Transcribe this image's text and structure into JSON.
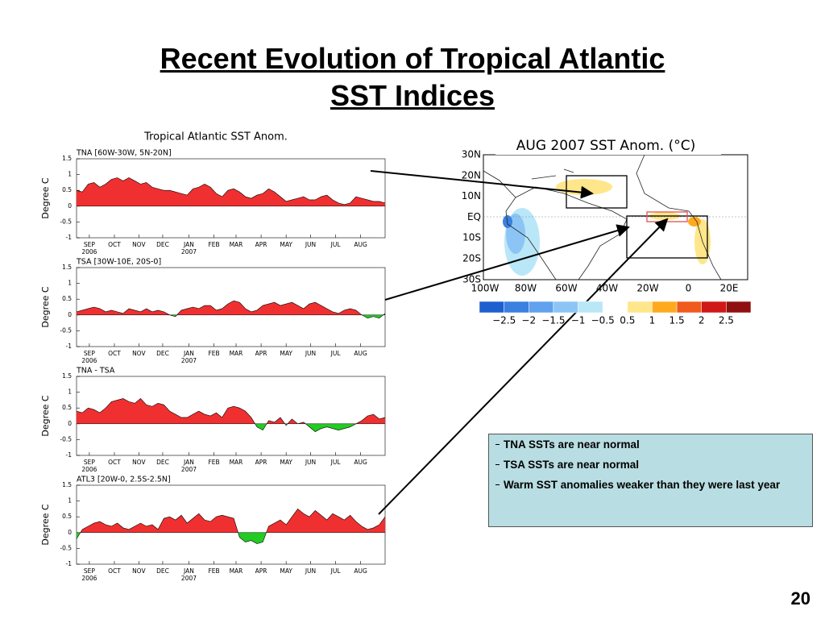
{
  "title_lines": [
    "Recent Evolution of Tropical Atlantic",
    "SST Indices"
  ],
  "panel_title": "Tropical Atlantic SST Anom.",
  "page_number": "20",
  "bullets": [
    "TNA SSTs are near normal",
    "TSA SSTs are near normal",
    "Warm SST anomalies weaker than they were last year"
  ],
  "map": {
    "title": "AUG 2007 SST Anom. (°C)",
    "lat_labels": [
      "30N",
      "20N",
      "10N",
      "EQ",
      "10S",
      "20S",
      "30S"
    ],
    "lon_labels": [
      "100W",
      "80W",
      "60W",
      "40W",
      "20W",
      "0",
      "20E"
    ],
    "colorbar": {
      "colors": [
        "#1e5fcf",
        "#3a80e0",
        "#60a2ee",
        "#8cc5f5",
        "#b9e7f8",
        "#ffffff",
        "#ffe68a",
        "#ffaa1e",
        "#f05a1e",
        "#d01818",
        "#901010"
      ],
      "labels": [
        "−2.5",
        "−2",
        "−1.5",
        "−1",
        "−0.5",
        "0.5",
        "1",
        "1.5",
        "2",
        "2.5"
      ]
    }
  },
  "chart_data": [
    {
      "type": "area",
      "title": "TNA [60W-30W, 5N-20N]",
      "ylabel": "Degree C",
      "positive_color": "#f03030",
      "negative_color": "#22cc22",
      "xlim": [
        0,
        53
      ],
      "ylim": [
        -1,
        1.5
      ],
      "yticks": [
        -1,
        -0.5,
        0,
        0.5,
        1,
        1.5
      ],
      "xticks": [
        {
          "value": 2.2,
          "label": "SEP"
        },
        {
          "value": 6.5,
          "label": "OCT"
        },
        {
          "value": 10.7,
          "label": "NOV"
        },
        {
          "value": 14.8,
          "label": "DEC"
        },
        {
          "value": 19.3,
          "label": "JAN"
        },
        {
          "value": 23.6,
          "label": "FEB"
        },
        {
          "value": 27.4,
          "label": "MAR"
        },
        {
          "value": 31.7,
          "label": "APR"
        },
        {
          "value": 36,
          "label": "MAY"
        },
        {
          "value": 40.2,
          "label": "JUN"
        },
        {
          "value": 44.5,
          "label": "JUL"
        },
        {
          "value": 48.8,
          "label": "AUG"
        }
      ],
      "year_labels": [
        {
          "value": 2.2,
          "label": "2006"
        },
        {
          "value": 19.3,
          "label": "2007"
        }
      ],
      "values": [
        0.5,
        0.45,
        0.7,
        0.75,
        0.6,
        0.7,
        0.85,
        0.9,
        0.8,
        0.9,
        0.8,
        0.7,
        0.75,
        0.6,
        0.55,
        0.5,
        0.5,
        0.45,
        0.4,
        0.35,
        0.55,
        0.6,
        0.7,
        0.6,
        0.4,
        0.3,
        0.5,
        0.55,
        0.45,
        0.3,
        0.25,
        0.35,
        0.4,
        0.55,
        0.45,
        0.3,
        0.15,
        0.2,
        0.25,
        0.3,
        0.2,
        0.2,
        0.3,
        0.35,
        0.2,
        0.1,
        0.05,
        0.1,
        0.3,
        0.25,
        0.2,
        0.15,
        0.15,
        0.1
      ]
    },
    {
      "type": "area",
      "title": "TSA [30W-10E, 20S-0]",
      "ylabel": "Degree C",
      "positive_color": "#f03030",
      "negative_color": "#22cc22",
      "xlim": [
        0,
        53
      ],
      "ylim": [
        -1,
        1.5
      ],
      "yticks": [
        -1,
        -0.5,
        0,
        0.5,
        1,
        1.5
      ],
      "xticks": [
        {
          "value": 2.2,
          "label": "SEP"
        },
        {
          "value": 6.5,
          "label": "OCT"
        },
        {
          "value": 10.7,
          "label": "NOV"
        },
        {
          "value": 14.8,
          "label": "DEC"
        },
        {
          "value": 19.3,
          "label": "JAN"
        },
        {
          "value": 23.6,
          "label": "FEB"
        },
        {
          "value": 27.4,
          "label": "MAR"
        },
        {
          "value": 31.7,
          "label": "APR"
        },
        {
          "value": 36,
          "label": "MAY"
        },
        {
          "value": 40.2,
          "label": "JUN"
        },
        {
          "value": 44.5,
          "label": "JUL"
        },
        {
          "value": 48.8,
          "label": "AUG"
        }
      ],
      "year_labels": [
        {
          "value": 2.2,
          "label": "2006"
        },
        {
          "value": 19.3,
          "label": "2007"
        }
      ],
      "values": [
        0.1,
        0.15,
        0.2,
        0.25,
        0.2,
        0.1,
        0.15,
        0.1,
        0.05,
        0.2,
        0.15,
        0.1,
        0.2,
        0.1,
        0.15,
        0.1,
        0,
        -0.05,
        0.15,
        0.2,
        0.25,
        0.2,
        0.3,
        0.3,
        0.15,
        0.2,
        0.35,
        0.45,
        0.4,
        0.2,
        0.1,
        0.15,
        0.3,
        0.35,
        0.4,
        0.3,
        0.35,
        0.4,
        0.3,
        0.2,
        0.35,
        0.4,
        0.3,
        0.2,
        0.1,
        0.05,
        0.15,
        0.2,
        0.15,
        0,
        -0.1,
        -0.05,
        -0.1,
        0.05
      ]
    },
    {
      "type": "area",
      "title": "TNA - TSA",
      "ylabel": "Degree C",
      "positive_color": "#f03030",
      "negative_color": "#22cc22",
      "xlim": [
        0,
        53
      ],
      "ylim": [
        -1,
        1.5
      ],
      "yticks": [
        -1,
        -0.5,
        0,
        0.5,
        1,
        1.5
      ],
      "xticks": [
        {
          "value": 2.2,
          "label": "SEP"
        },
        {
          "value": 6.5,
          "label": "OCT"
        },
        {
          "value": 10.7,
          "label": "NOV"
        },
        {
          "value": 14.8,
          "label": "DEC"
        },
        {
          "value": 19.3,
          "label": "JAN"
        },
        {
          "value": 23.6,
          "label": "FEB"
        },
        {
          "value": 27.4,
          "label": "MAR"
        },
        {
          "value": 31.7,
          "label": "APR"
        },
        {
          "value": 36,
          "label": "MAY"
        },
        {
          "value": 40.2,
          "label": "JUN"
        },
        {
          "value": 44.5,
          "label": "JUL"
        },
        {
          "value": 48.8,
          "label": "AUG"
        }
      ],
      "year_labels": [
        {
          "value": 2.2,
          "label": "2006"
        },
        {
          "value": 19.3,
          "label": "2007"
        }
      ],
      "values": [
        0.4,
        0.35,
        0.5,
        0.45,
        0.35,
        0.5,
        0.7,
        0.75,
        0.8,
        0.7,
        0.65,
        0.8,
        0.6,
        0.55,
        0.65,
        0.6,
        0.4,
        0.3,
        0.2,
        0.2,
        0.3,
        0.4,
        0.3,
        0.25,
        0.35,
        0.2,
        0.5,
        0.55,
        0.5,
        0.4,
        0.2,
        -0.1,
        -0.2,
        0.1,
        0.05,
        0.2,
        -0.05,
        0.15,
        0,
        0.05,
        -0.1,
        -0.25,
        -0.15,
        -0.1,
        -0.15,
        -0.2,
        -0.15,
        -0.1,
        0,
        0.1,
        0.25,
        0.3,
        0.15,
        0.2
      ]
    },
    {
      "type": "area",
      "title": "ATL3 [20W-0, 2.5S-2.5N]",
      "ylabel": "Degree C",
      "positive_color": "#f03030",
      "negative_color": "#22cc22",
      "xlim": [
        0,
        53
      ],
      "ylim": [
        -1,
        1.5
      ],
      "yticks": [
        -1,
        -0.5,
        0,
        0.5,
        1,
        1.5
      ],
      "xticks": [
        {
          "value": 2.2,
          "label": "SEP"
        },
        {
          "value": 6.5,
          "label": "OCT"
        },
        {
          "value": 10.7,
          "label": "NOV"
        },
        {
          "value": 14.8,
          "label": "DEC"
        },
        {
          "value": 19.3,
          "label": "JAN"
        },
        {
          "value": 23.6,
          "label": "FEB"
        },
        {
          "value": 27.4,
          "label": "MAR"
        },
        {
          "value": 31.7,
          "label": "APR"
        },
        {
          "value": 36,
          "label": "MAY"
        },
        {
          "value": 40.2,
          "label": "JUN"
        },
        {
          "value": 44.5,
          "label": "JUL"
        },
        {
          "value": 48.8,
          "label": "AUG"
        }
      ],
      "year_labels": [
        {
          "value": 2.2,
          "label": "2006"
        },
        {
          "value": 19.3,
          "label": "2007"
        }
      ],
      "values": [
        -0.2,
        0.1,
        0.2,
        0.3,
        0.35,
        0.25,
        0.2,
        0.3,
        0.15,
        0.1,
        0.2,
        0.3,
        0.2,
        0.25,
        0.1,
        0.45,
        0.5,
        0.4,
        0.55,
        0.3,
        0.45,
        0.6,
        0.4,
        0.35,
        0.5,
        0.55,
        0.5,
        0.45,
        -0.15,
        -0.3,
        -0.25,
        -0.35,
        -0.3,
        0.2,
        0.3,
        0.4,
        0.25,
        0.5,
        0.75,
        0.6,
        0.5,
        0.7,
        0.55,
        0.4,
        0.6,
        0.5,
        0.4,
        0.55,
        0.35,
        0.2,
        0.1,
        0.15,
        0.25,
        0.5
      ]
    }
  ]
}
